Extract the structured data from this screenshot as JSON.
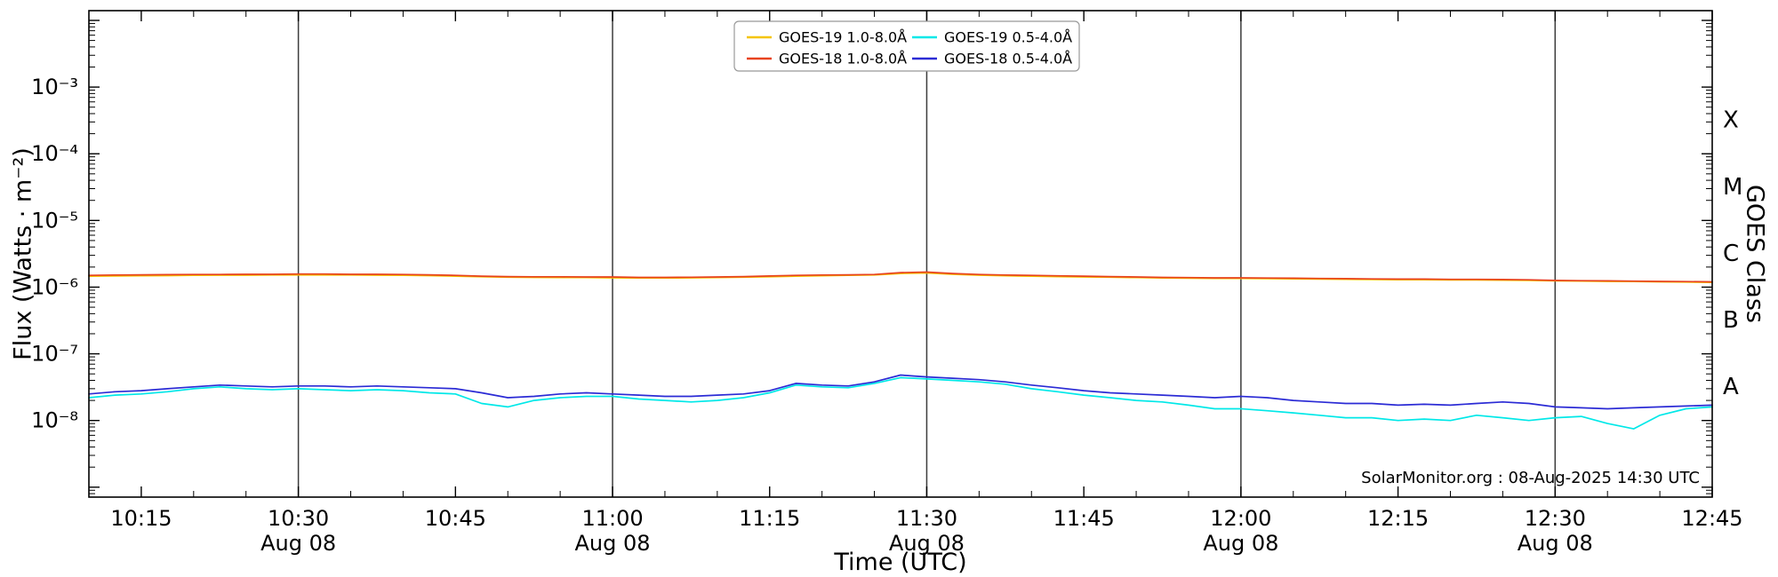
{
  "colors": {
    "background": "#ffffff",
    "axis": "#000000",
    "grid": "#3c3c3c",
    "legend_border": "#999999",
    "goes19_long": "#f5c400",
    "goes18_long": "#e8431f",
    "goes19_short": "#00e8e8",
    "goes18_short": "#2b2bd5"
  },
  "annotation": {
    "text": "SolarMonitor.org : 08-Aug-2025 14:30 UTC"
  },
  "chart_data": {
    "type": "line",
    "title": "",
    "xlabel": "Time (UTC)",
    "ylabel_left": "Flux (Watts · m⁻²)",
    "ylabel_right": "GOES Class",
    "x_axis_date": "Aug 08",
    "x_reference": "minutes after 10:10 UTC 08-Aug-2025",
    "xlim_minutes": [
      0,
      155
    ],
    "ylim": [
      7.1e-10,
      0.014
    ],
    "y_scale": "log",
    "grid": "vertical-only",
    "legend_position": "top-center",
    "grid_lines_minutes": [
      20,
      50,
      80,
      110,
      140
    ],
    "x_ticks": [
      {
        "t": 5,
        "label": "10:15"
      },
      {
        "t": 20,
        "label": "10:30",
        "sub": "Aug 08"
      },
      {
        "t": 35,
        "label": "10:45"
      },
      {
        "t": 50,
        "label": "11:00",
        "sub": "Aug 08"
      },
      {
        "t": 65,
        "label": "11:15"
      },
      {
        "t": 80,
        "label": "11:30",
        "sub": "Aug 08"
      },
      {
        "t": 95,
        "label": "11:45"
      },
      {
        "t": 110,
        "label": "12:00",
        "sub": "Aug 08"
      },
      {
        "t": 125,
        "label": "12:15"
      },
      {
        "t": 140,
        "label": "12:30",
        "sub": "Aug 08"
      },
      {
        "t": 155,
        "label": "12:45"
      }
    ],
    "y_ticks": [
      {
        "label": "10⁻³",
        "value": 0.001
      },
      {
        "label": "10⁻⁴",
        "value": 0.0001
      },
      {
        "label": "10⁻⁵",
        "value": 1e-05
      },
      {
        "label": "10⁻⁶",
        "value": 1e-06
      },
      {
        "label": "10⁻⁷",
        "value": 1e-07
      },
      {
        "label": "10⁻⁸",
        "value": 1e-08
      }
    ],
    "y_extra_decades": [
      1e-09,
      0.01
    ],
    "goes_class_labels": [
      {
        "label": "X",
        "value": 0.000316
      },
      {
        "label": "M",
        "value": 3.16e-05
      },
      {
        "label": "C",
        "value": 3.16e-06
      },
      {
        "label": "B",
        "value": 3.16e-07
      },
      {
        "label": "A",
        "value": 3.16e-08
      }
    ],
    "x_values_minutes": [
      0,
      2.5,
      5,
      7.5,
      10,
      12.5,
      15,
      17.5,
      20,
      22.5,
      25,
      27.5,
      30,
      32.5,
      35,
      37.5,
      40,
      42.5,
      45,
      47.5,
      50,
      52.5,
      55,
      57.5,
      60,
      62.5,
      65,
      67.5,
      70,
      72.5,
      75,
      77.5,
      80,
      82.5,
      85,
      87.5,
      90,
      92.5,
      95,
      97.5,
      100,
      102.5,
      105,
      107.5,
      110,
      112.5,
      115,
      117.5,
      120,
      122.5,
      125,
      127.5,
      130,
      132.5,
      135,
      137.5,
      140,
      142.5,
      145,
      147.5,
      150,
      152.5,
      155
    ],
    "series": [
      {
        "name": "GOES-19 1.0-8.0Å",
        "color_key": "goes19_long",
        "scale": 1e-06,
        "values": [
          1.46,
          1.47,
          1.48,
          1.49,
          1.5,
          1.51,
          1.51,
          1.52,
          1.52,
          1.52,
          1.52,
          1.51,
          1.5,
          1.49,
          1.46,
          1.43,
          1.41,
          1.4,
          1.39,
          1.39,
          1.38,
          1.37,
          1.37,
          1.38,
          1.39,
          1.41,
          1.43,
          1.46,
          1.48,
          1.5,
          1.52,
          1.6,
          1.63,
          1.56,
          1.51,
          1.48,
          1.46,
          1.44,
          1.42,
          1.41,
          1.39,
          1.37,
          1.36,
          1.35,
          1.35,
          1.34,
          1.33,
          1.32,
          1.31,
          1.3,
          1.29,
          1.29,
          1.28,
          1.28,
          1.27,
          1.26,
          1.24,
          1.23,
          1.22,
          1.21,
          1.2,
          1.19,
          1.18
        ]
      },
      {
        "name": "GOES-18 1.0-8.0Å",
        "color_key": "goes18_long",
        "scale": 1e-06,
        "values": [
          1.5,
          1.52,
          1.53,
          1.54,
          1.55,
          1.55,
          1.56,
          1.56,
          1.57,
          1.57,
          1.56,
          1.56,
          1.55,
          1.53,
          1.5,
          1.46,
          1.44,
          1.43,
          1.43,
          1.42,
          1.42,
          1.4,
          1.4,
          1.41,
          1.42,
          1.44,
          1.47,
          1.5,
          1.52,
          1.53,
          1.55,
          1.65,
          1.68,
          1.6,
          1.55,
          1.52,
          1.5,
          1.48,
          1.46,
          1.44,
          1.42,
          1.4,
          1.39,
          1.38,
          1.38,
          1.37,
          1.36,
          1.35,
          1.34,
          1.33,
          1.32,
          1.32,
          1.31,
          1.31,
          1.3,
          1.29,
          1.26,
          1.25,
          1.24,
          1.23,
          1.22,
          1.21,
          1.2
        ]
      },
      {
        "name": "GOES-19 0.5-4.0Å",
        "color_key": "goes19_short",
        "scale": 1e-08,
        "values": [
          2.2,
          2.4,
          2.5,
          2.7,
          3.0,
          3.2,
          3.0,
          2.9,
          3.0,
          2.9,
          2.8,
          2.9,
          2.8,
          2.6,
          2.5,
          1.8,
          1.6,
          2.0,
          2.2,
          2.3,
          2.3,
          2.1,
          2.0,
          1.9,
          2.0,
          2.2,
          2.6,
          3.4,
          3.2,
          3.1,
          3.6,
          4.4,
          4.2,
          4.0,
          3.8,
          3.5,
          3.0,
          2.7,
          2.4,
          2.2,
          2.0,
          1.9,
          1.7,
          1.5,
          1.5,
          1.4,
          1.3,
          1.2,
          1.1,
          1.1,
          1.0,
          1.05,
          1.0,
          1.2,
          1.1,
          1.0,
          1.1,
          1.15,
          0.9,
          0.75,
          1.2,
          1.5,
          1.6
        ]
      },
      {
        "name": "GOES-18 0.5-4.0Å",
        "color_key": "goes18_short",
        "scale": 1e-08,
        "values": [
          2.5,
          2.7,
          2.8,
          3.0,
          3.2,
          3.4,
          3.3,
          3.2,
          3.3,
          3.3,
          3.2,
          3.3,
          3.2,
          3.1,
          3.0,
          2.6,
          2.2,
          2.3,
          2.5,
          2.6,
          2.5,
          2.4,
          2.3,
          2.3,
          2.4,
          2.5,
          2.8,
          3.6,
          3.4,
          3.3,
          3.8,
          4.8,
          4.5,
          4.3,
          4.1,
          3.8,
          3.4,
          3.1,
          2.8,
          2.6,
          2.5,
          2.4,
          2.3,
          2.2,
          2.3,
          2.2,
          2.0,
          1.9,
          1.8,
          1.8,
          1.7,
          1.75,
          1.7,
          1.8,
          1.9,
          1.8,
          1.6,
          1.55,
          1.5,
          1.55,
          1.6,
          1.65,
          1.7
        ]
      }
    ]
  }
}
